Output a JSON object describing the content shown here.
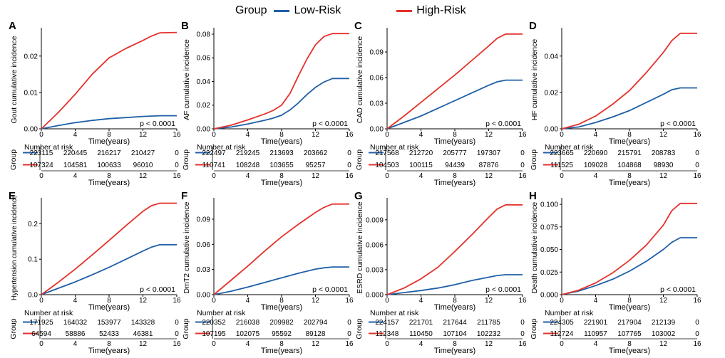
{
  "legend": {
    "title": "Group",
    "items": [
      {
        "label": "Low-Risk",
        "color": "#1f5fa6"
      },
      {
        "label": "High-Risk",
        "color": "#e5312b"
      }
    ]
  },
  "colors": {
    "low": "#1f5fa6",
    "high": "#e5312b",
    "axis": "#000000"
  },
  "chart_data": [
    {
      "panel": "A",
      "type": "line",
      "ylabel": "Gout cumulative incidence",
      "xlabel": "Time(years)",
      "xlim": [
        0,
        16
      ],
      "xticks": [
        0,
        4,
        8,
        12,
        16
      ],
      "ylim": [
        0,
        0.027
      ],
      "yticks": [
        0,
        0.01,
        0.02
      ],
      "ytick_labels": [
        "0.00",
        "0.01",
        "0.02"
      ],
      "pvalue": "p < 0.0001",
      "series": [
        {
          "name": "Low-Risk",
          "color": "#1f5fa6",
          "x": [
            0,
            2,
            4,
            6,
            8,
            10,
            12,
            14,
            16
          ],
          "y": [
            0,
            0.0009,
            0.0017,
            0.0023,
            0.0028,
            0.0031,
            0.0034,
            0.0036,
            0.0036
          ]
        },
        {
          "name": "High-Risk",
          "color": "#e5312b",
          "x": [
            0,
            2,
            4,
            6,
            8,
            10,
            12,
            13,
            14,
            16
          ],
          "y": [
            0,
            0.0045,
            0.0095,
            0.015,
            0.0195,
            0.0221,
            0.0243,
            0.0255,
            0.0264,
            0.0265
          ]
        }
      ],
      "risk_table": {
        "title": "Number at risk",
        "ylabel": "Group",
        "times": [
          0,
          4,
          8,
          12,
          16
        ],
        "rows": [
          {
            "group": "Low-Risk",
            "values": [
              "223115",
              "220445",
              "216217",
              "210427",
              "0"
            ]
          },
          {
            "group": "High-Risk",
            "values": [
              "107324",
              "104581",
              "100633",
              "96010",
              "0"
            ]
          }
        ]
      }
    },
    {
      "panel": "B",
      "type": "line",
      "ylabel": "AF cumulative incidence",
      "xlabel": "Time(years)",
      "xlim": [
        0,
        16
      ],
      "xticks": [
        0,
        4,
        8,
        12,
        16
      ],
      "ylim": [
        0,
        0.083
      ],
      "yticks": [
        0,
        0.02,
        0.04,
        0.06,
        0.08
      ],
      "ytick_labels": [
        "0.00",
        "0.02",
        "0.04",
        "0.06",
        "0.08"
      ],
      "pvalue": "p < 0.0001",
      "series": [
        {
          "name": "Low-Risk",
          "color": "#1f5fa6",
          "x": [
            0,
            2,
            4,
            6,
            7,
            8,
            9,
            10,
            11,
            12,
            13,
            14,
            16
          ],
          "y": [
            0,
            0.0015,
            0.004,
            0.0072,
            0.009,
            0.0115,
            0.016,
            0.022,
            0.029,
            0.035,
            0.0395,
            0.0425,
            0.0425
          ]
        },
        {
          "name": "High-Risk",
          "color": "#e5312b",
          "x": [
            0,
            2,
            4,
            6,
            7,
            8,
            9,
            10,
            11,
            12,
            13,
            14,
            16
          ],
          "y": [
            0,
            0.003,
            0.0075,
            0.0125,
            0.0155,
            0.02,
            0.03,
            0.045,
            0.059,
            0.071,
            0.078,
            0.0805,
            0.0805
          ]
        }
      ],
      "risk_table": {
        "title": "Number at risk",
        "ylabel": "Group",
        "times": [
          0,
          4,
          8,
          12,
          16
        ],
        "rows": [
          {
            "group": "Low-Risk",
            "values": [
              "222497",
              "219245",
              "213693",
              "203662",
              "0"
            ]
          },
          {
            "group": "High-Risk",
            "values": [
              "110741",
              "108248",
              "103655",
              "95257",
              "0"
            ]
          }
        ]
      }
    },
    {
      "panel": "C",
      "type": "line",
      "ylabel": "CAD cumulative incidence",
      "xlabel": "Time(years)",
      "xlim": [
        0,
        16
      ],
      "xticks": [
        0,
        4,
        8,
        12,
        16
      ],
      "ylim": [
        0,
        0.115
      ],
      "yticks": [
        0,
        0.03,
        0.06,
        0.09
      ],
      "ytick_labels": [
        "0.00",
        "0.03",
        "0.06",
        "0.09"
      ],
      "pvalue": "p < 0.0001",
      "series": [
        {
          "name": "Low-Risk",
          "color": "#1f5fa6",
          "x": [
            0,
            2,
            4,
            6,
            8,
            10,
            12,
            13,
            14,
            16
          ],
          "y": [
            0,
            0.0075,
            0.015,
            0.024,
            0.033,
            0.042,
            0.051,
            0.055,
            0.057,
            0.057
          ]
        },
        {
          "name": "High-Risk",
          "color": "#e5312b",
          "x": [
            0,
            2,
            4,
            6,
            8,
            10,
            12,
            13,
            14,
            16
          ],
          "y": [
            0,
            0.015,
            0.031,
            0.047,
            0.063,
            0.08,
            0.097,
            0.106,
            0.111,
            0.111
          ]
        }
      ],
      "risk_table": {
        "title": "Number at risk",
        "ylabel": "Group",
        "times": [
          0,
          4,
          8,
          12,
          16
        ],
        "rows": [
          {
            "group": "Low-Risk",
            "values": [
              "217568",
              "212720",
              "205777",
              "197307",
              "0"
            ]
          },
          {
            "group": "High-Risk",
            "values": [
              "104503",
              "100115",
              "94439",
              "87876",
              "0"
            ]
          }
        ]
      }
    },
    {
      "panel": "D",
      "type": "line",
      "ylabel": "HF cumulative incidence",
      "xlabel": "Time(years)",
      "xlim": [
        0,
        16
      ],
      "xticks": [
        0,
        4,
        8,
        12,
        16
      ],
      "ylim": [
        0,
        0.054
      ],
      "yticks": [
        0,
        0.02,
        0.04
      ],
      "ytick_labels": [
        "0.00",
        "0.02",
        "0.04"
      ],
      "pvalue": "p < 0.0001",
      "series": [
        {
          "name": "Low-Risk",
          "color": "#1f5fa6",
          "x": [
            0,
            2,
            4,
            6,
            8,
            10,
            12,
            13,
            14,
            16
          ],
          "y": [
            0,
            0.001,
            0.0035,
            0.0065,
            0.01,
            0.0145,
            0.019,
            0.0215,
            0.0225,
            0.0225
          ]
        },
        {
          "name": "High-Risk",
          "color": "#e5312b",
          "x": [
            0,
            2,
            4,
            6,
            8,
            10,
            12,
            13,
            14,
            16
          ],
          "y": [
            0,
            0.0025,
            0.007,
            0.0135,
            0.021,
            0.031,
            0.042,
            0.0485,
            0.0525,
            0.0525
          ]
        }
      ],
      "risk_table": {
        "title": "Number at risk",
        "ylabel": "Group",
        "times": [
          0,
          4,
          8,
          12,
          16
        ],
        "rows": [
          {
            "group": "Low-Risk",
            "values": [
              "223665",
              "220690",
              "215791",
              "208783",
              "0"
            ]
          },
          {
            "group": "High-Risk",
            "values": [
              "111525",
              "109028",
              "104868",
              "98930",
              "0"
            ]
          }
        ]
      }
    },
    {
      "panel": "E",
      "type": "line",
      "ylabel": "Hypertension cumulative incidence",
      "xlabel": "Time(years)",
      "xlim": [
        0,
        16
      ],
      "xticks": [
        0,
        4,
        8,
        12,
        16
      ],
      "ylim": [
        0,
        0.265
      ],
      "yticks": [
        0,
        0.1,
        0.2
      ],
      "ytick_labels": [
        "0.0",
        "0.1",
        "0.2"
      ],
      "pvalue": "p < 0.0001",
      "series": [
        {
          "name": "Low-Risk",
          "color": "#1f5fa6",
          "x": [
            0,
            2,
            4,
            6,
            8,
            10,
            12,
            13,
            14,
            16
          ],
          "y": [
            0,
            0.018,
            0.036,
            0.056,
            0.077,
            0.1,
            0.123,
            0.134,
            0.141,
            0.141
          ]
        },
        {
          "name": "High-Risk",
          "color": "#e5312b",
          "x": [
            0,
            2,
            4,
            6,
            8,
            10,
            12,
            13,
            14,
            16
          ],
          "y": [
            0,
            0.035,
            0.072,
            0.112,
            0.153,
            0.195,
            0.235,
            0.251,
            0.258,
            0.258
          ]
        }
      ],
      "risk_table": {
        "title": "Number at risk",
        "ylabel": "Group",
        "times": [
          0,
          4,
          8,
          12,
          16
        ],
        "rows": [
          {
            "group": "Low-Risk",
            "values": [
              "171925",
              "164032",
              "153977",
              "143328",
              "0"
            ]
          },
          {
            "group": "High-Risk",
            "values": [
              "64594",
              "58886",
              "52433",
              "46381",
              "0"
            ]
          }
        ]
      }
    },
    {
      "panel": "F",
      "type": "line",
      "ylabel": "DmT2 cumulative incidence",
      "xlabel": "Time(years)",
      "xlim": [
        0,
        16
      ],
      "xticks": [
        0,
        4,
        8,
        12,
        16
      ],
      "ylim": [
        0,
        0.112
      ],
      "yticks": [
        0,
        0.03,
        0.06,
        0.09
      ],
      "ytick_labels": [
        "0.00",
        "0.03",
        "0.06",
        "0.09"
      ],
      "pvalue": "p < 0.0001",
      "series": [
        {
          "name": "Low-Risk",
          "color": "#1f5fa6",
          "x": [
            0,
            2,
            4,
            6,
            8,
            10,
            12,
            13,
            14,
            16
          ],
          "y": [
            0,
            0.004,
            0.009,
            0.0145,
            0.02,
            0.0255,
            0.0305,
            0.032,
            0.033,
            0.033
          ]
        },
        {
          "name": "High-Risk",
          "color": "#e5312b",
          "x": [
            0,
            2,
            4,
            6,
            8,
            10,
            12,
            13,
            14,
            16
          ],
          "y": [
            0,
            0.017,
            0.034,
            0.052,
            0.069,
            0.084,
            0.098,
            0.104,
            0.108,
            0.108
          ]
        }
      ],
      "risk_table": {
        "title": "Number at risk",
        "ylabel": "Group",
        "times": [
          0,
          4,
          8,
          12,
          16
        ],
        "rows": [
          {
            "group": "Low-Risk",
            "values": [
              "220352",
              "216038",
              "209982",
              "202794",
              "0"
            ]
          },
          {
            "group": "High-Risk",
            "values": [
              "107195",
              "102075",
              "95592",
              "89128",
              "0"
            ]
          }
        ]
      }
    },
    {
      "panel": "G",
      "type": "line",
      "ylabel": "ESRD cumulative incidence",
      "xlabel": "Time(years)",
      "xlim": [
        0,
        16
      ],
      "xticks": [
        0,
        4,
        8,
        12,
        16
      ],
      "ylim": [
        0,
        0.0113
      ],
      "yticks": [
        0,
        0.003,
        0.006,
        0.009
      ],
      "ytick_labels": [
        "0.000",
        "0.003",
        "0.006",
        "0.009"
      ],
      "pvalue": "p < 0.0001",
      "series": [
        {
          "name": "Low-Risk",
          "color": "#1f5fa6",
          "x": [
            0,
            2,
            4,
            6,
            8,
            10,
            12,
            13,
            14,
            16
          ],
          "y": [
            0,
            0.00025,
            0.0005,
            0.0008,
            0.0012,
            0.0017,
            0.0021,
            0.0023,
            0.0024,
            0.0024
          ]
        },
        {
          "name": "High-Risk",
          "color": "#e5312b",
          "x": [
            0,
            2,
            4,
            6,
            8,
            10,
            12,
            13,
            14,
            16
          ],
          "y": [
            0,
            0.0008,
            0.0019,
            0.0033,
            0.0052,
            0.0072,
            0.0093,
            0.0103,
            0.0108,
            0.0108
          ]
        }
      ],
      "risk_table": {
        "title": "Number at risk",
        "ylabel": "Group",
        "times": [
          0,
          4,
          8,
          12,
          16
        ],
        "rows": [
          {
            "group": "Low-Risk",
            "values": [
              "224157",
              "221701",
              "217644",
              "211785",
              "0"
            ]
          },
          {
            "group": "High-Risk",
            "values": [
              "112348",
              "110450",
              "107104",
              "102232",
              "0"
            ]
          }
        ]
      }
    },
    {
      "panel": "H",
      "type": "line",
      "ylabel": "Death cumulative incidence",
      "xlabel": "Time(years)",
      "xlim": [
        0,
        16
      ],
      "xticks": [
        0,
        4,
        8,
        12,
        16
      ],
      "ylim": [
        0,
        0.104
      ],
      "yticks": [
        0,
        0.025,
        0.05,
        0.075,
        0.1
      ],
      "ytick_labels": [
        "0.000",
        "0.025",
        "0.050",
        "0.075",
        "0.100"
      ],
      "pvalue": "p < 0.0001",
      "series": [
        {
          "name": "Low-Risk",
          "color": "#1f5fa6",
          "x": [
            0,
            2,
            4,
            6,
            8,
            10,
            12,
            13,
            14,
            16
          ],
          "y": [
            0,
            0.004,
            0.01,
            0.017,
            0.026,
            0.037,
            0.05,
            0.058,
            0.063,
            0.063
          ]
        },
        {
          "name": "High-Risk",
          "color": "#e5312b",
          "x": [
            0,
            2,
            4,
            6,
            8,
            10,
            12,
            13,
            14,
            16
          ],
          "y": [
            0,
            0.005,
            0.013,
            0.024,
            0.038,
            0.055,
            0.077,
            0.093,
            0.101,
            0.101
          ]
        }
      ],
      "risk_table": {
        "title": "Number at risk",
        "ylabel": "Group",
        "times": [
          0,
          4,
          8,
          12,
          16
        ],
        "rows": [
          {
            "group": "Low-Risk",
            "values": [
              "224305",
              "221901",
              "217904",
              "212139",
              "0"
            ]
          },
          {
            "group": "High-Risk",
            "values": [
              "112724",
              "110957",
              "107765",
              "103002",
              "0"
            ]
          }
        ]
      }
    }
  ]
}
